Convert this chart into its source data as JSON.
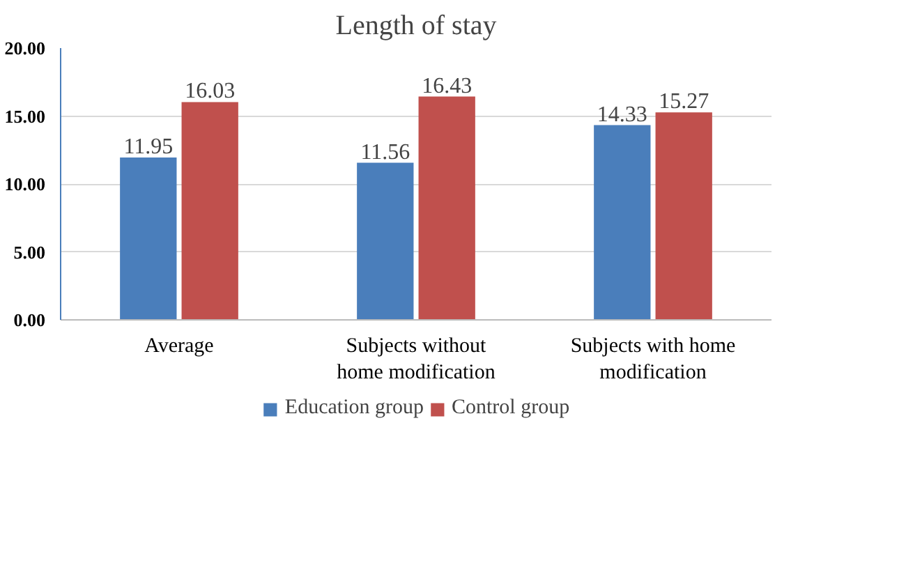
{
  "chart_data": {
    "type": "bar",
    "title": "Length of stay",
    "categories": [
      "Average",
      "Subjects without home modification",
      "Subjects with home modification"
    ],
    "series": [
      {
        "name": "Education group",
        "color": "#4a7ebb",
        "values": [
          11.95,
          11.56,
          14.33
        ]
      },
      {
        "name": "Control group",
        "color": "#c0504d",
        "values": [
          16.03,
          16.43,
          15.27
        ]
      }
    ],
    "ylim": [
      0,
      20
    ],
    "yticks": [
      {
        "value": 0,
        "label": "0.00"
      },
      {
        "value": 5,
        "label": "5.00"
      },
      {
        "value": 10,
        "label": "10.00"
      },
      {
        "value": 15,
        "label": "15.00"
      },
      {
        "value": 20,
        "label": "20.00"
      }
    ],
    "grid": "y",
    "legend": "bottom",
    "data_labels": true
  }
}
